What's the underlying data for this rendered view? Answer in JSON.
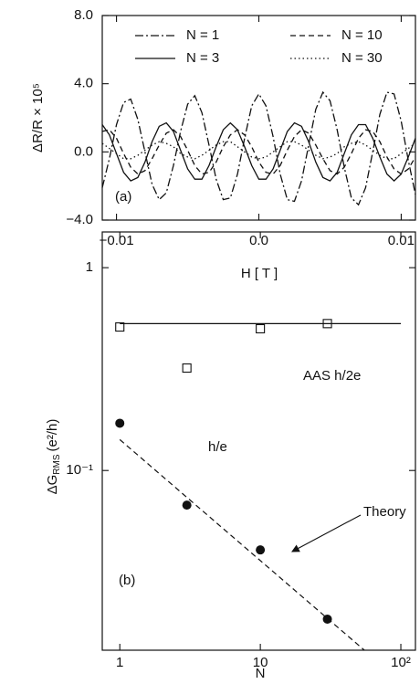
{
  "chart_data": [
    {
      "type": "line",
      "xlabel": "H [ T ]",
      "ylabel": "ΔR/R × 10⁵",
      "panel_label": "(a)",
      "x": [
        -0.011,
        -0.0105,
        -0.01,
        -0.0095,
        -0.009,
        -0.0085,
        -0.008,
        -0.0075,
        -0.007,
        -0.0065,
        -0.006,
        -0.0055,
        -0.005,
        -0.0045,
        -0.004,
        -0.0035,
        -0.003,
        -0.0025,
        -0.002,
        -0.0015,
        -0.001,
        -0.0005,
        0,
        0.0005,
        0.001,
        0.0015,
        0.002,
        0.0025,
        0.003,
        0.0035,
        0.004,
        0.0045,
        0.005,
        0.0055,
        0.006,
        0.0065,
        0.007,
        0.0075,
        0.008,
        0.0085,
        0.009,
        0.0095,
        0.01,
        0.0105,
        0.011
      ],
      "series": [
        {
          "name": "N = 1",
          "color": "#111111",
          "dash": "dashdot",
          "values": [
            -2.1,
            -0.4,
            1.6,
            2.9,
            3.1,
            1.9,
            0.0,
            -1.9,
            -2.8,
            -2.4,
            -0.8,
            1.2,
            2.8,
            3.3,
            2.3,
            0.4,
            -1.6,
            -2.8,
            -2.7,
            -1.3,
            0.8,
            2.7,
            3.4,
            2.7,
            0.9,
            -1.3,
            -2.8,
            -2.9,
            -1.7,
            0.4,
            2.5,
            3.5,
            3.0,
            1.3,
            -0.9,
            -2.7,
            -3.1,
            -2.1,
            0.0,
            2.2,
            3.5,
            3.4,
            1.8,
            -0.5,
            -2.5
          ]
        },
        {
          "name": "N = 10",
          "color": "#111111",
          "dash": "dashed",
          "values": [
            1.2,
            1.3,
            0.8,
            -0.1,
            -0.9,
            -1.3,
            -1.1,
            -0.4,
            0.4,
            1.1,
            1.3,
            0.9,
            0.1,
            -0.8,
            -1.3,
            -1.2,
            -0.6,
            0.3,
            1.0,
            1.3,
            1.0,
            0.3,
            -0.6,
            -1.2,
            -1.3,
            -0.8,
            0.1,
            0.9,
            1.3,
            1.1,
            0.4,
            -0.4,
            -1.1,
            -1.3,
            -0.9,
            -0.1,
            0.8,
            1.3,
            1.2,
            0.6,
            -0.3,
            -1.0,
            -1.3,
            -1.0,
            -0.3
          ]
        },
        {
          "name": "N = 3",
          "color": "#111111",
          "dash": "solid",
          "values": [
            1.6,
            1.0,
            -0.1,
            -1.2,
            -1.7,
            -1.5,
            -0.6,
            0.6,
            1.5,
            1.7,
            1.2,
            0.1,
            -1.0,
            -1.6,
            -1.6,
            -0.8,
            0.3,
            1.3,
            1.7,
            1.3,
            0.3,
            -0.8,
            -1.6,
            -1.6,
            -1.0,
            0.1,
            1.2,
            1.7,
            1.5,
            0.6,
            -0.6,
            -1.5,
            -1.7,
            -1.2,
            -0.1,
            1.0,
            1.6,
            1.6,
            0.8,
            -0.3,
            -1.3,
            -1.7,
            -1.3,
            -0.3,
            0.8
          ]
        },
        {
          "name": "N = 30",
          "color": "#111111",
          "dash": "dotted",
          "values": [
            0.5,
            0.2,
            -0.1,
            -0.4,
            -0.4,
            -0.2,
            0.1,
            0.4,
            0.6,
            0.5,
            0.3,
            -0.1,
            -0.3,
            -0.4,
            -0.2,
            0.1,
            0.4,
            0.6,
            0.6,
            0.3,
            0.0,
            -0.3,
            -0.4,
            -0.3,
            0.0,
            0.3,
            0.6,
            0.6,
            0.4,
            0.1,
            -0.2,
            -0.4,
            -0.3,
            -0.1,
            0.3,
            0.5,
            0.6,
            0.4,
            0.1,
            -0.2,
            -0.4,
            -0.4,
            -0.1,
            0.2,
            0.5
          ]
        }
      ],
      "xlim": [
        -0.011,
        0.011
      ],
      "xticks": [
        {
          "value": -0.01,
          "label": "−0.01"
        },
        {
          "value": 0,
          "label": "0.0"
        },
        {
          "value": 0.01,
          "label": "0.01"
        }
      ],
      "ylim": [
        -4,
        8
      ],
      "yticks": [
        {
          "value": -4,
          "label": "−4.0"
        },
        {
          "value": 0,
          "label": "0.0"
        },
        {
          "value": 4,
          "label": "4.0"
        },
        {
          "value": 8,
          "label": "8.0"
        }
      ],
      "legend": "top",
      "grid": false
    },
    {
      "type": "scatter",
      "xlabel": "N",
      "ylabel": "ΔG",
      "ylabel_sub": "RMS",
      "ylabel_unit": "(e²/h)",
      "panel_label": "(b)",
      "xscale": "log",
      "yscale": "log",
      "series": [
        {
          "name": "AAS h/2e",
          "color": "#111111",
          "marker": "open-square",
          "x": [
            1,
            3,
            10,
            30
          ],
          "values": [
            0.51,
            0.32,
            0.5,
            0.53
          ]
        },
        {
          "name": "h/e",
          "color": "#111111",
          "marker": "filled-circle",
          "x": [
            1,
            3,
            10,
            30
          ],
          "values": [
            0.171,
            0.0675,
            0.0406,
            0.0185
          ]
        },
        {
          "color": "#111111",
          "dash": "solid",
          "x": [
            1,
            100
          ],
          "values": [
            0.53,
            0.53
          ]
        },
        {
          "name": "Theory",
          "color": "#111111",
          "dash": "dashed",
          "x": [
            1,
            55
          ],
          "values": [
            0.142,
            0.013
          ]
        }
      ],
      "xlim": [
        0.75,
        127
      ],
      "xticks": [
        1,
        10,
        {
          "value": 100,
          "label": "10²"
        }
      ],
      "ylim": [
        0.013,
        1.5
      ],
      "yticks": [
        {
          "value": 0.1,
          "label": "10⁻¹"
        },
        1
      ],
      "grid": false
    }
  ]
}
